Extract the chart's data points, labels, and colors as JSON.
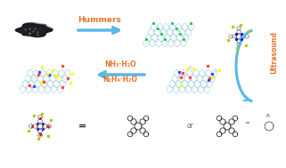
{
  "background_color": "#ffffff",
  "hummers_text": "Hummers",
  "ultrasound_text": "Ultrasound",
  "nh3_text": "NH₃·H₂O",
  "n2h4_text": "N₂H₄·H₂O",
  "or_text": "or",
  "eq1_text": "=",
  "eq2_text": "=",
  "orange_color": "#E8742A",
  "arrow_blue": "#5BB8E8"
}
